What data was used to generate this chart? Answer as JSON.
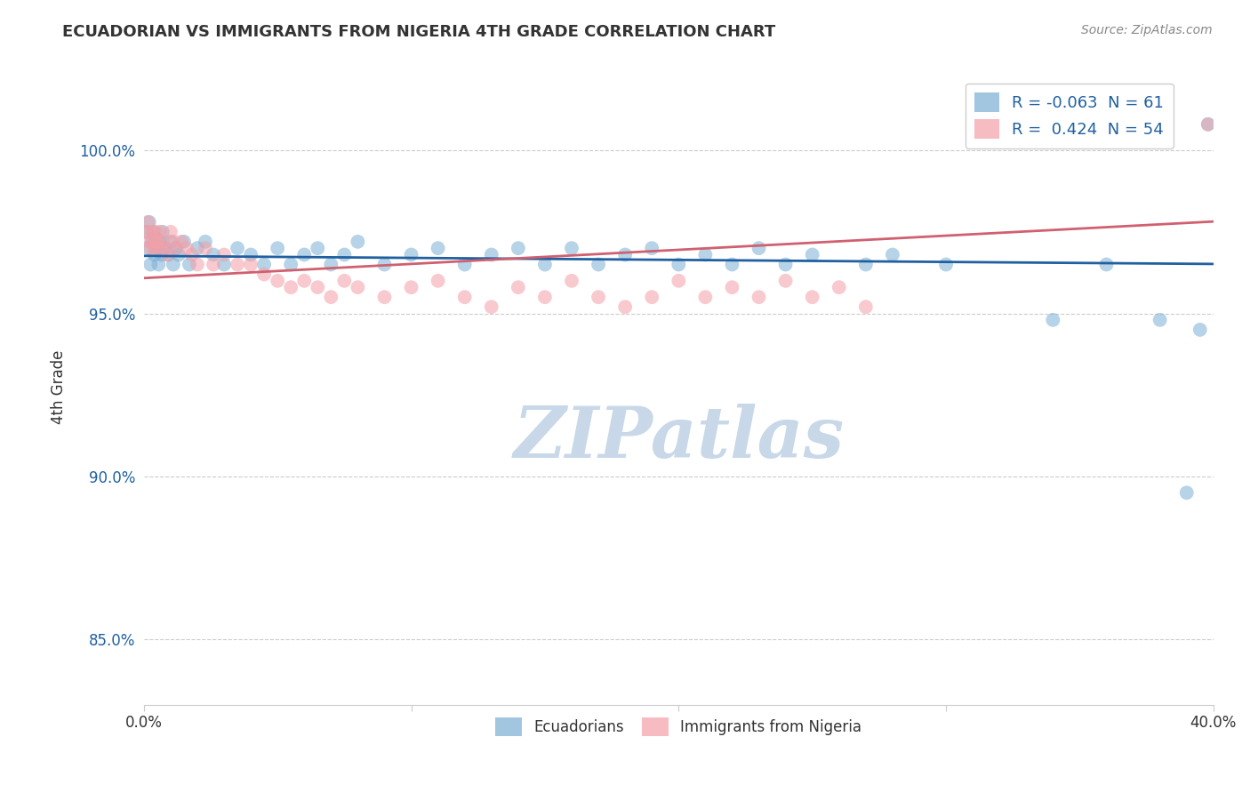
{
  "title": "ECUADORIAN VS IMMIGRANTS FROM NIGERIA 4TH GRADE CORRELATION CHART",
  "source_text": "Source: ZipAtlas.com",
  "ylabel": "4th Grade",
  "xlim": [
    0.0,
    40.0
  ],
  "ylim": [
    83.0,
    102.5
  ],
  "yticks": [
    85.0,
    90.0,
    95.0,
    100.0
  ],
  "xticks": [
    0.0,
    10.0,
    20.0,
    30.0,
    40.0
  ],
  "blue_color": "#7BAFD4",
  "pink_color": "#F4A0A8",
  "blue_line_color": "#2060A0",
  "pink_line_color": "#D06070",
  "blue_R": -0.063,
  "blue_N": 61,
  "pink_R": 0.424,
  "pink_N": 54,
  "watermark": "ZIPatlas",
  "watermark_color": "#C8D8E8",
  "blue_scatter_x": [
    0.1,
    0.15,
    0.2,
    0.25,
    0.3,
    0.35,
    0.4,
    0.45,
    0.5,
    0.55,
    0.6,
    0.65,
    0.7,
    0.8,
    0.9,
    1.0,
    1.1,
    1.2,
    1.3,
    1.5,
    1.7,
    2.0,
    2.3,
    2.6,
    3.0,
    3.5,
    4.0,
    4.5,
    5.0,
    5.5,
    6.0,
    6.5,
    7.0,
    7.5,
    8.0,
    9.0,
    10.0,
    11.0,
    12.0,
    13.0,
    14.0,
    15.0,
    16.0,
    17.0,
    18.0,
    19.0,
    20.0,
    21.0,
    22.0,
    23.0,
    24.0,
    25.0,
    27.0,
    28.0,
    30.0,
    34.0,
    36.0,
    38.0,
    39.0,
    39.5,
    39.8
  ],
  "blue_scatter_y": [
    97.5,
    97.0,
    97.8,
    96.5,
    97.2,
    97.5,
    96.8,
    97.3,
    97.0,
    96.5,
    97.2,
    96.8,
    97.5,
    97.0,
    96.8,
    97.2,
    96.5,
    97.0,
    96.8,
    97.2,
    96.5,
    97.0,
    97.2,
    96.8,
    96.5,
    97.0,
    96.8,
    96.5,
    97.0,
    96.5,
    96.8,
    97.0,
    96.5,
    96.8,
    97.2,
    96.5,
    96.8,
    97.0,
    96.5,
    96.8,
    97.0,
    96.5,
    97.0,
    96.5,
    96.8,
    97.0,
    96.5,
    96.8,
    96.5,
    97.0,
    96.5,
    96.8,
    96.5,
    96.8,
    96.5,
    94.8,
    96.5,
    94.8,
    89.5,
    94.5,
    100.8
  ],
  "pink_scatter_x": [
    0.1,
    0.15,
    0.2,
    0.25,
    0.3,
    0.35,
    0.4,
    0.45,
    0.5,
    0.55,
    0.6,
    0.7,
    0.8,
    0.9,
    1.0,
    1.1,
    1.2,
    1.4,
    1.6,
    1.8,
    2.0,
    2.3,
    2.6,
    3.0,
    3.5,
    4.0,
    4.5,
    5.0,
    5.5,
    6.0,
    6.5,
    7.0,
    7.5,
    8.0,
    9.0,
    10.0,
    11.0,
    12.0,
    13.0,
    14.0,
    15.0,
    16.0,
    17.0,
    18.0,
    19.0,
    20.0,
    21.0,
    22.0,
    23.0,
    24.0,
    25.0,
    26.0,
    27.0,
    39.8
  ],
  "pink_scatter_y": [
    97.5,
    97.8,
    97.2,
    97.0,
    97.5,
    97.2,
    97.0,
    97.5,
    97.2,
    97.0,
    97.5,
    97.2,
    97.0,
    96.8,
    97.5,
    97.2,
    97.0,
    97.2,
    97.0,
    96.8,
    96.5,
    97.0,
    96.5,
    96.8,
    96.5,
    96.5,
    96.2,
    96.0,
    95.8,
    96.0,
    95.8,
    95.5,
    96.0,
    95.8,
    95.5,
    95.8,
    96.0,
    95.5,
    95.2,
    95.8,
    95.5,
    96.0,
    95.5,
    95.2,
    95.5,
    96.0,
    95.5,
    95.8,
    95.5,
    96.0,
    95.5,
    95.8,
    95.2,
    100.8
  ],
  "background_color": "#FFFFFF",
  "grid_color": "#CCCCCC"
}
